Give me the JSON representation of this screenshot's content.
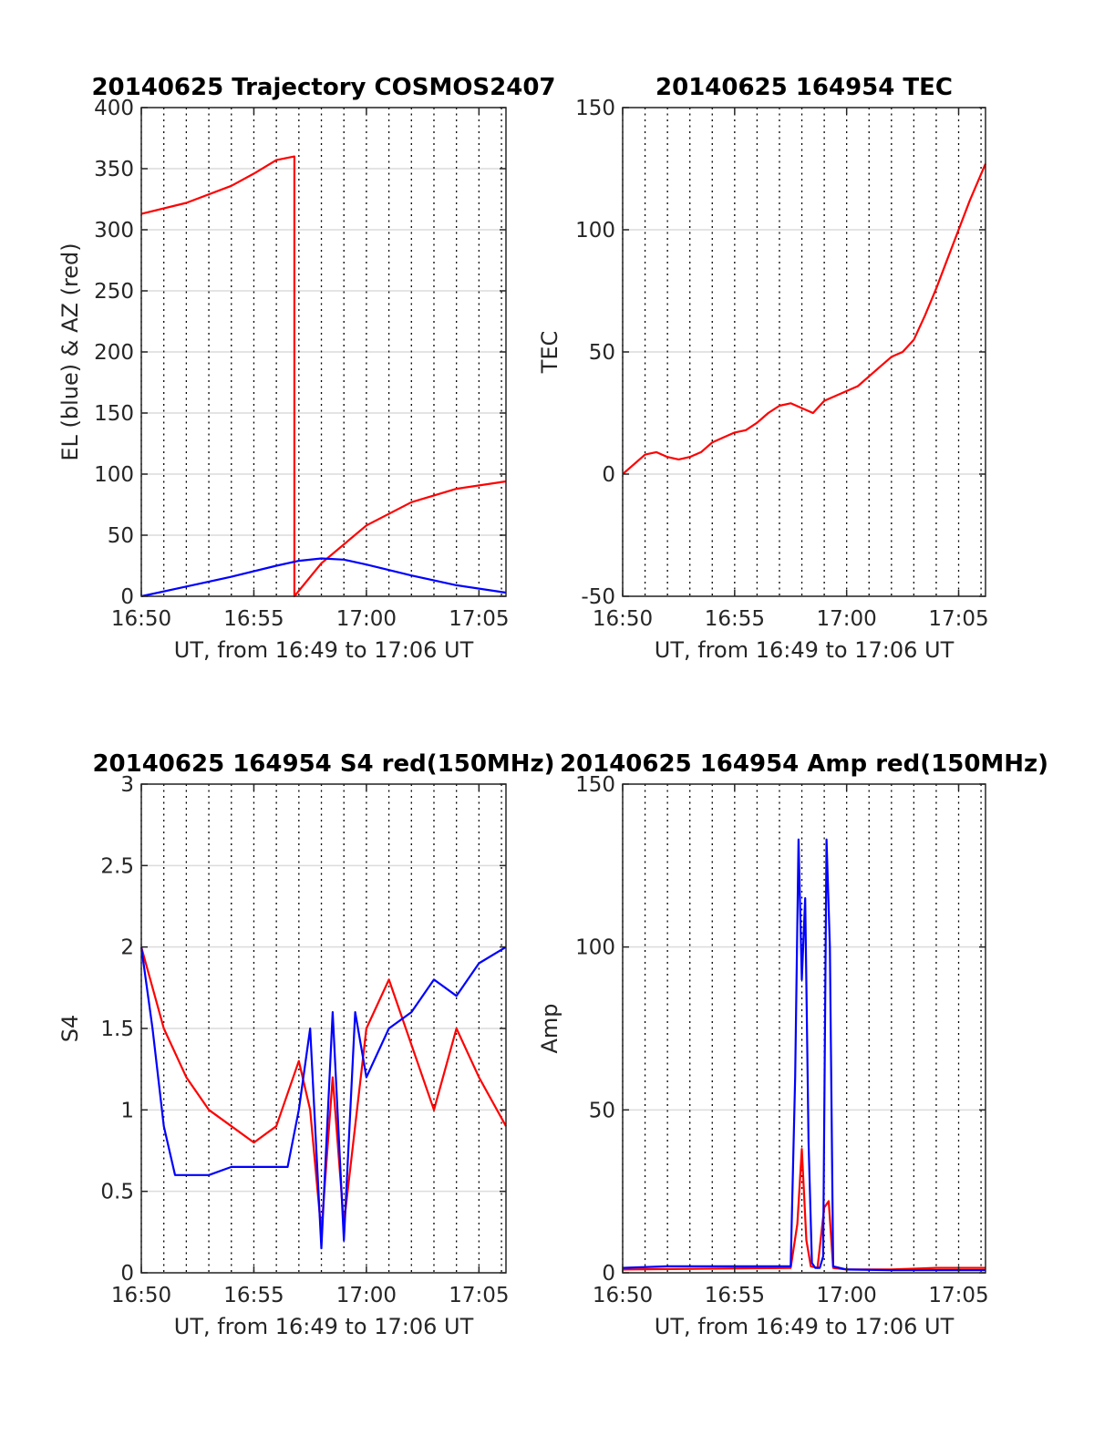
{
  "chart_data": [
    {
      "type": "line",
      "title": "20140625 Trajectory COSMOS2407",
      "xlabel": "UT, from 16:49 to 17:06 UT",
      "ylabel": "EL (blue) & AZ (red)",
      "xlim_min": [
        0,
        16.2
      ],
      "ylim": [
        0,
        400
      ],
      "xticks_min": [
        0,
        5,
        10,
        15
      ],
      "xtick_labels": [
        "16:50",
        "16:55",
        "17:00",
        "17:05"
      ],
      "yticks": [
        0,
        50,
        100,
        150,
        200,
        250,
        300,
        350,
        400
      ],
      "grid": true,
      "series": [
        {
          "name": "AZ",
          "color": "#ff0000",
          "x": [
            0,
            2,
            4,
            5,
            6,
            6.8,
            6.8,
            8,
            10,
            12,
            14,
            16.2
          ],
          "y": [
            313,
            322,
            336,
            346,
            357,
            360,
            0,
            27,
            58,
            77,
            88,
            94
          ]
        },
        {
          "name": "EL",
          "color": "#0000ff",
          "x": [
            0,
            2,
            4,
            6,
            7,
            8,
            9,
            10,
            12,
            14,
            16.2
          ],
          "y": [
            0,
            8,
            16,
            25,
            29,
            31,
            30,
            26,
            17,
            9,
            3
          ]
        }
      ]
    },
    {
      "type": "line",
      "title": "20140625 164954 TEC",
      "xlabel": "UT, from 16:49 to 17:06 UT",
      "ylabel": "TEC",
      "xlim_min": [
        0,
        16.2
      ],
      "ylim": [
        -50,
        150
      ],
      "xticks_min": [
        0,
        5,
        10,
        15
      ],
      "xtick_labels": [
        "16:50",
        "16:55",
        "17:00",
        "17:05"
      ],
      "yticks": [
        -50,
        0,
        50,
        100,
        150
      ],
      "grid": true,
      "series": [
        {
          "name": "TEC",
          "color": "#ff0000",
          "x": [
            0,
            0.5,
            1,
            1.5,
            2,
            2.5,
            3,
            3.5,
            4,
            4.5,
            5,
            5.5,
            6,
            6.5,
            7,
            7.5,
            8,
            8.5,
            9,
            9.5,
            10,
            10.5,
            11,
            11.5,
            12,
            12.5,
            13,
            13.5,
            14,
            14.5,
            15,
            15.5,
            16.2
          ],
          "y": [
            0,
            4,
            8,
            9,
            7,
            6,
            7,
            9,
            13,
            15,
            17,
            18,
            21,
            25,
            28,
            29,
            27,
            25,
            30,
            32,
            34,
            36,
            40,
            44,
            48,
            50,
            55,
            65,
            76,
            88,
            100,
            112,
            127
          ]
        }
      ]
    },
    {
      "type": "line",
      "title": "20140625 164954 S4 red(150MHz)",
      "xlabel": "UT, from 16:49 to 17:06 UT",
      "ylabel": "S4",
      "xlim_min": [
        0,
        16.2
      ],
      "ylim": [
        0,
        3
      ],
      "xticks_min": [
        0,
        5,
        10,
        15
      ],
      "xtick_labels": [
        "16:50",
        "16:55",
        "17:00",
        "17:05"
      ],
      "yticks": [
        0,
        0.5,
        1,
        1.5,
        2,
        2.5,
        3
      ],
      "ytick_labels": [
        "0",
        "0.5",
        "1",
        "1.5",
        "2",
        "2.5",
        "3"
      ],
      "grid": true,
      "series": [
        {
          "name": "red (150MHz)",
          "color": "#ff0000",
          "x": [
            0,
            1,
            2,
            3,
            4,
            5,
            6,
            7,
            7.5,
            8,
            8.5,
            9,
            10,
            11,
            12,
            13,
            14,
            15,
            16.2
          ],
          "y": [
            2.0,
            1.5,
            1.2,
            1.0,
            0.9,
            0.8,
            0.9,
            1.3,
            1.0,
            0.25,
            1.2,
            0.3,
            1.5,
            1.8,
            1.4,
            1.0,
            1.5,
            1.2,
            0.9
          ]
        },
        {
          "name": "blue",
          "color": "#0000ff",
          "x": [
            0,
            0.5,
            1,
            1.5,
            2,
            3,
            4,
            5,
            6,
            6.5,
            7,
            7.5,
            8,
            8.5,
            9,
            9.5,
            10,
            11,
            12,
            13,
            14,
            15,
            16.2
          ],
          "y": [
            2.0,
            1.5,
            0.9,
            0.6,
            0.6,
            0.6,
            0.65,
            0.65,
            0.65,
            0.65,
            1.0,
            1.5,
            0.15,
            1.6,
            0.2,
            1.6,
            1.2,
            1.5,
            1.6,
            1.8,
            1.7,
            1.9,
            2.0
          ]
        }
      ]
    },
    {
      "type": "line",
      "title": "20140625 164954 Amp red(150MHz)",
      "xlabel": "UT, from 16:49 to 17:06 UT",
      "ylabel": "Amp",
      "xlim_min": [
        0,
        16.2
      ],
      "ylim": [
        0,
        150
      ],
      "xticks_min": [
        0,
        5,
        10,
        15
      ],
      "xtick_labels": [
        "16:50",
        "16:55",
        "17:00",
        "17:05"
      ],
      "yticks": [
        0,
        50,
        100,
        150
      ],
      "grid": true,
      "series": [
        {
          "name": "red (150MHz)",
          "color": "#ff0000",
          "x": [
            0,
            7.5,
            7.8,
            8.0,
            8.2,
            8.4,
            8.7,
            9.0,
            9.2,
            9.4,
            10,
            12,
            14,
            16.2
          ],
          "y": [
            1,
            1.5,
            15,
            38,
            10,
            2,
            1.5,
            20,
            22,
            1.5,
            1,
            1,
            1.5,
            1.5
          ]
        },
        {
          "name": "blue",
          "color": "#0000ff",
          "x": [
            0,
            2,
            4,
            6,
            7.5,
            7.7,
            7.85,
            8.0,
            8.15,
            8.3,
            8.45,
            8.6,
            8.8,
            8.95,
            9.1,
            9.25,
            9.4,
            10,
            12,
            14,
            16.2
          ],
          "y": [
            1.5,
            2,
            2,
            2,
            2,
            60,
            133,
            90,
            115,
            40,
            3,
            1.5,
            1.5,
            5,
            133,
            100,
            2,
            1,
            0.8,
            0.8,
            0.8
          ]
        }
      ]
    }
  ]
}
